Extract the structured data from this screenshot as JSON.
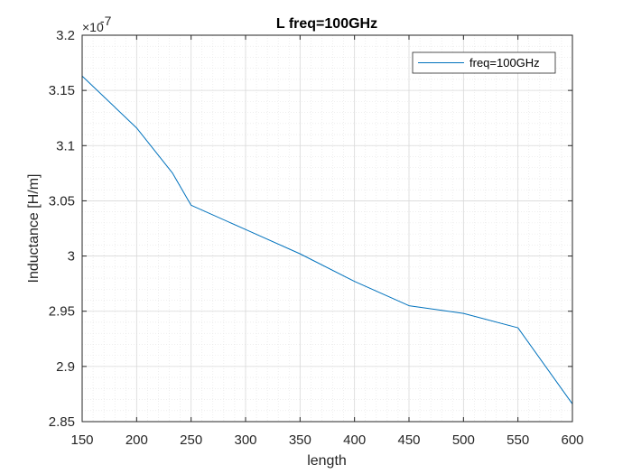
{
  "chart_data": {
    "type": "line",
    "title": "L freq=100GHz",
    "xlabel": "length",
    "ylabel": "Inductance [H/m]",
    "xlim": [
      150,
      600
    ],
    "ylim": [
      2.85,
      3.2
    ],
    "y_exponent_label": "×10",
    "y_exponent_power": "-7",
    "x_ticks": [
      150,
      200,
      250,
      300,
      350,
      400,
      450,
      500,
      550,
      600
    ],
    "x_tick_labels": [
      "150",
      "200",
      "250",
      "300",
      "350",
      "400",
      "450",
      "500",
      "550",
      "600"
    ],
    "y_ticks": [
      2.85,
      2.9,
      2.95,
      3.0,
      3.05,
      3.1,
      3.15,
      3.2
    ],
    "y_tick_labels": [
      "2.85",
      "2.9",
      "2.95",
      "3",
      "3.05",
      "3.1",
      "3.15",
      "3.2"
    ],
    "grid": "major and minor",
    "legend_position": "top-right",
    "series": [
      {
        "name": "freq=100GHz",
        "color": "#0072BD",
        "x": [
          150,
          200,
          233,
          250,
          300,
          350,
          400,
          450,
          500,
          550,
          600
        ],
        "y": [
          3.163,
          3.116,
          3.075,
          3.046,
          3.024,
          3.002,
          2.977,
          2.955,
          2.948,
          2.935,
          2.866
        ]
      }
    ]
  }
}
